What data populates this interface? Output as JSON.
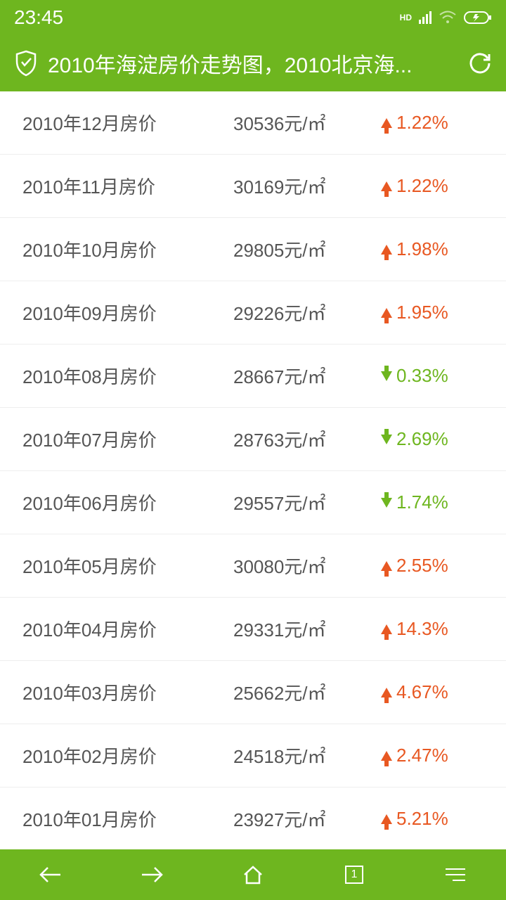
{
  "status": {
    "time": "23:45",
    "hd_label": "HD"
  },
  "header": {
    "title": "2010年海淀房价走势图，2010北京海..."
  },
  "price_unit": "元/㎡",
  "rows": [
    {
      "label": "2010年12月房价",
      "price": "30536",
      "change": "1.22%",
      "dir": "up"
    },
    {
      "label": "2010年11月房价",
      "price": "30169",
      "change": "1.22%",
      "dir": "up"
    },
    {
      "label": "2010年10月房价",
      "price": "29805",
      "change": "1.98%",
      "dir": "up"
    },
    {
      "label": "2010年09月房价",
      "price": "29226",
      "change": "1.95%",
      "dir": "up"
    },
    {
      "label": "2010年08月房价",
      "price": "28667",
      "change": "0.33%",
      "dir": "down"
    },
    {
      "label": "2010年07月房价",
      "price": "28763",
      "change": "2.69%",
      "dir": "down"
    },
    {
      "label": "2010年06月房价",
      "price": "29557",
      "change": "1.74%",
      "dir": "down"
    },
    {
      "label": "2010年05月房价",
      "price": "30080",
      "change": "2.55%",
      "dir": "up"
    },
    {
      "label": "2010年04月房价",
      "price": "29331",
      "change": "14.3%",
      "dir": "up"
    },
    {
      "label": "2010年03月房价",
      "price": "25662",
      "change": "4.67%",
      "dir": "up"
    },
    {
      "label": "2010年02月房价",
      "price": "24518",
      "change": "2.47%",
      "dir": "up"
    },
    {
      "label": "2010年01月房价",
      "price": "23927",
      "change": "5.21%",
      "dir": "up"
    }
  ],
  "nav": {
    "tab_count": "1"
  },
  "colors": {
    "green": "#6eb61f",
    "orange": "#e85822",
    "text": "#555555",
    "divider": "#eeeeee",
    "white": "#ffffff"
  },
  "typography": {
    "row_fontsize": 26,
    "title_fontsize": 30,
    "time_fontsize": 28
  }
}
